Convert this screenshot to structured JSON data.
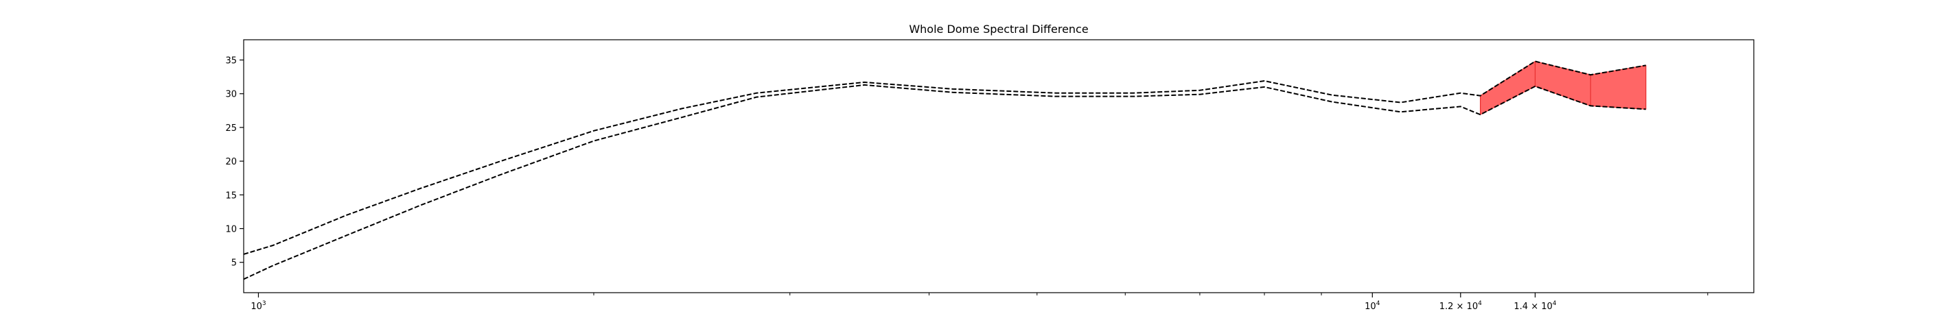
{
  "chart_data": {
    "type": "line",
    "title": "Whole Dome Spectral Difference",
    "xlabel": "",
    "ylabel": "",
    "x_scale": "log",
    "xlim": [
      970,
      22000
    ],
    "ylim": [
      0.5,
      38
    ],
    "grid": false,
    "y_ticks": [
      5,
      10,
      15,
      20,
      25,
      30,
      35
    ],
    "x_tick_labels": [
      {
        "value": 1000,
        "base": "10",
        "exp": "3",
        "mantissa": ""
      },
      {
        "value": 10000,
        "base": "10",
        "exp": "4",
        "mantissa": ""
      },
      {
        "value": 12000,
        "base": "10",
        "exp": "4",
        "mantissa": "1.2 × "
      },
      {
        "value": 14000,
        "base": "10",
        "exp": "4",
        "mantissa": "1.4 × "
      }
    ],
    "x_minor_ticks": [
      2000,
      3000,
      4000,
      5000,
      6000,
      7000,
      8000,
      9000,
      20000
    ],
    "series": [
      {
        "line_style": "dashed",
        "color": "#000000",
        "x": [
          970,
          1030,
          1200,
          1400,
          1650,
          2000,
          2400,
          2800,
          3500,
          4200,
          5200,
          6100,
          7000,
          8000,
          9200,
          10600,
          12000,
          12500,
          14000,
          15700,
          17600
        ],
        "y": [
          6.2,
          7.5,
          12.0,
          16.0,
          20.0,
          24.5,
          27.8,
          30.1,
          31.7,
          30.7,
          30.1,
          30.1,
          30.5,
          31.9,
          29.8,
          28.7,
          30.1,
          29.7,
          34.8,
          32.8,
          34.2
        ]
      },
      {
        "line_style": "dashed",
        "color": "#000000",
        "x": [
          970,
          1030,
          1200,
          1400,
          1650,
          2000,
          2400,
          2800,
          3500,
          4200,
          5200,
          6100,
          7000,
          8000,
          9200,
          10600,
          12000,
          12500,
          14000,
          15700,
          17600
        ],
        "y": [
          2.5,
          4.5,
          9.0,
          13.5,
          18.0,
          23.0,
          26.5,
          29.5,
          31.3,
          30.2,
          29.6,
          29.6,
          29.9,
          31.0,
          28.8,
          27.3,
          28.1,
          26.9,
          31.1,
          28.2,
          27.7
        ]
      }
    ],
    "fill_between": {
      "color": "#ff6666",
      "x_start": 12500,
      "x_end": 17600
    }
  }
}
